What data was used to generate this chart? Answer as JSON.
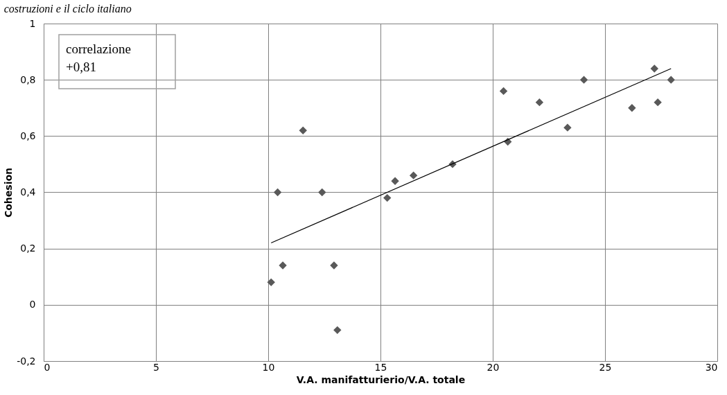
{
  "chart_data": {
    "type": "scatter",
    "title": "costruzioni e il ciclo italiano",
    "xlabel": "V.A. manifatturierio/V.A. totale",
    "ylabel": "Cohesion",
    "annotations": [
      "correlazione\n+0,81"
    ],
    "series": [
      {
        "type": "scatter",
        "color": "#595959",
        "marker": "diamond",
        "x": [
          10.13,
          10.42,
          10.65,
          11.55,
          12.4,
          12.93,
          13.08,
          15.3,
          15.65,
          16.47,
          18.21,
          20.48,
          20.67,
          22.08,
          23.33,
          24.06,
          26.2,
          27.2,
          27.35,
          27.94
        ],
        "values": [
          0.08,
          0.4,
          0.14,
          0.62,
          0.4,
          0.14,
          -0.09,
          0.38,
          0.44,
          0.46,
          0.5,
          0.76,
          0.58,
          0.72,
          0.63,
          0.8,
          0.7,
          0.84,
          0.72,
          0.8
        ]
      },
      {
        "type": "line",
        "color": "#000000",
        "x": [
          10.13,
          27.94
        ],
        "values": [
          0.22,
          0.84
        ]
      }
    ],
    "xlim": [
      0,
      30
    ],
    "xticks": [
      0,
      5,
      10,
      15,
      20,
      25,
      30
    ],
    "ylim": [
      -0.2,
      1
    ],
    "yticks": [
      {
        "value": -0.2,
        "label": "-0,2"
      },
      0,
      {
        "value": 0.2,
        "label": "0,2"
      },
      {
        "value": 0.4,
        "label": "0,4"
      },
      {
        "value": 0.6,
        "label": "0,6"
      },
      {
        "value": 0.8,
        "label": "0,8"
      },
      1
    ],
    "grid": true
  }
}
